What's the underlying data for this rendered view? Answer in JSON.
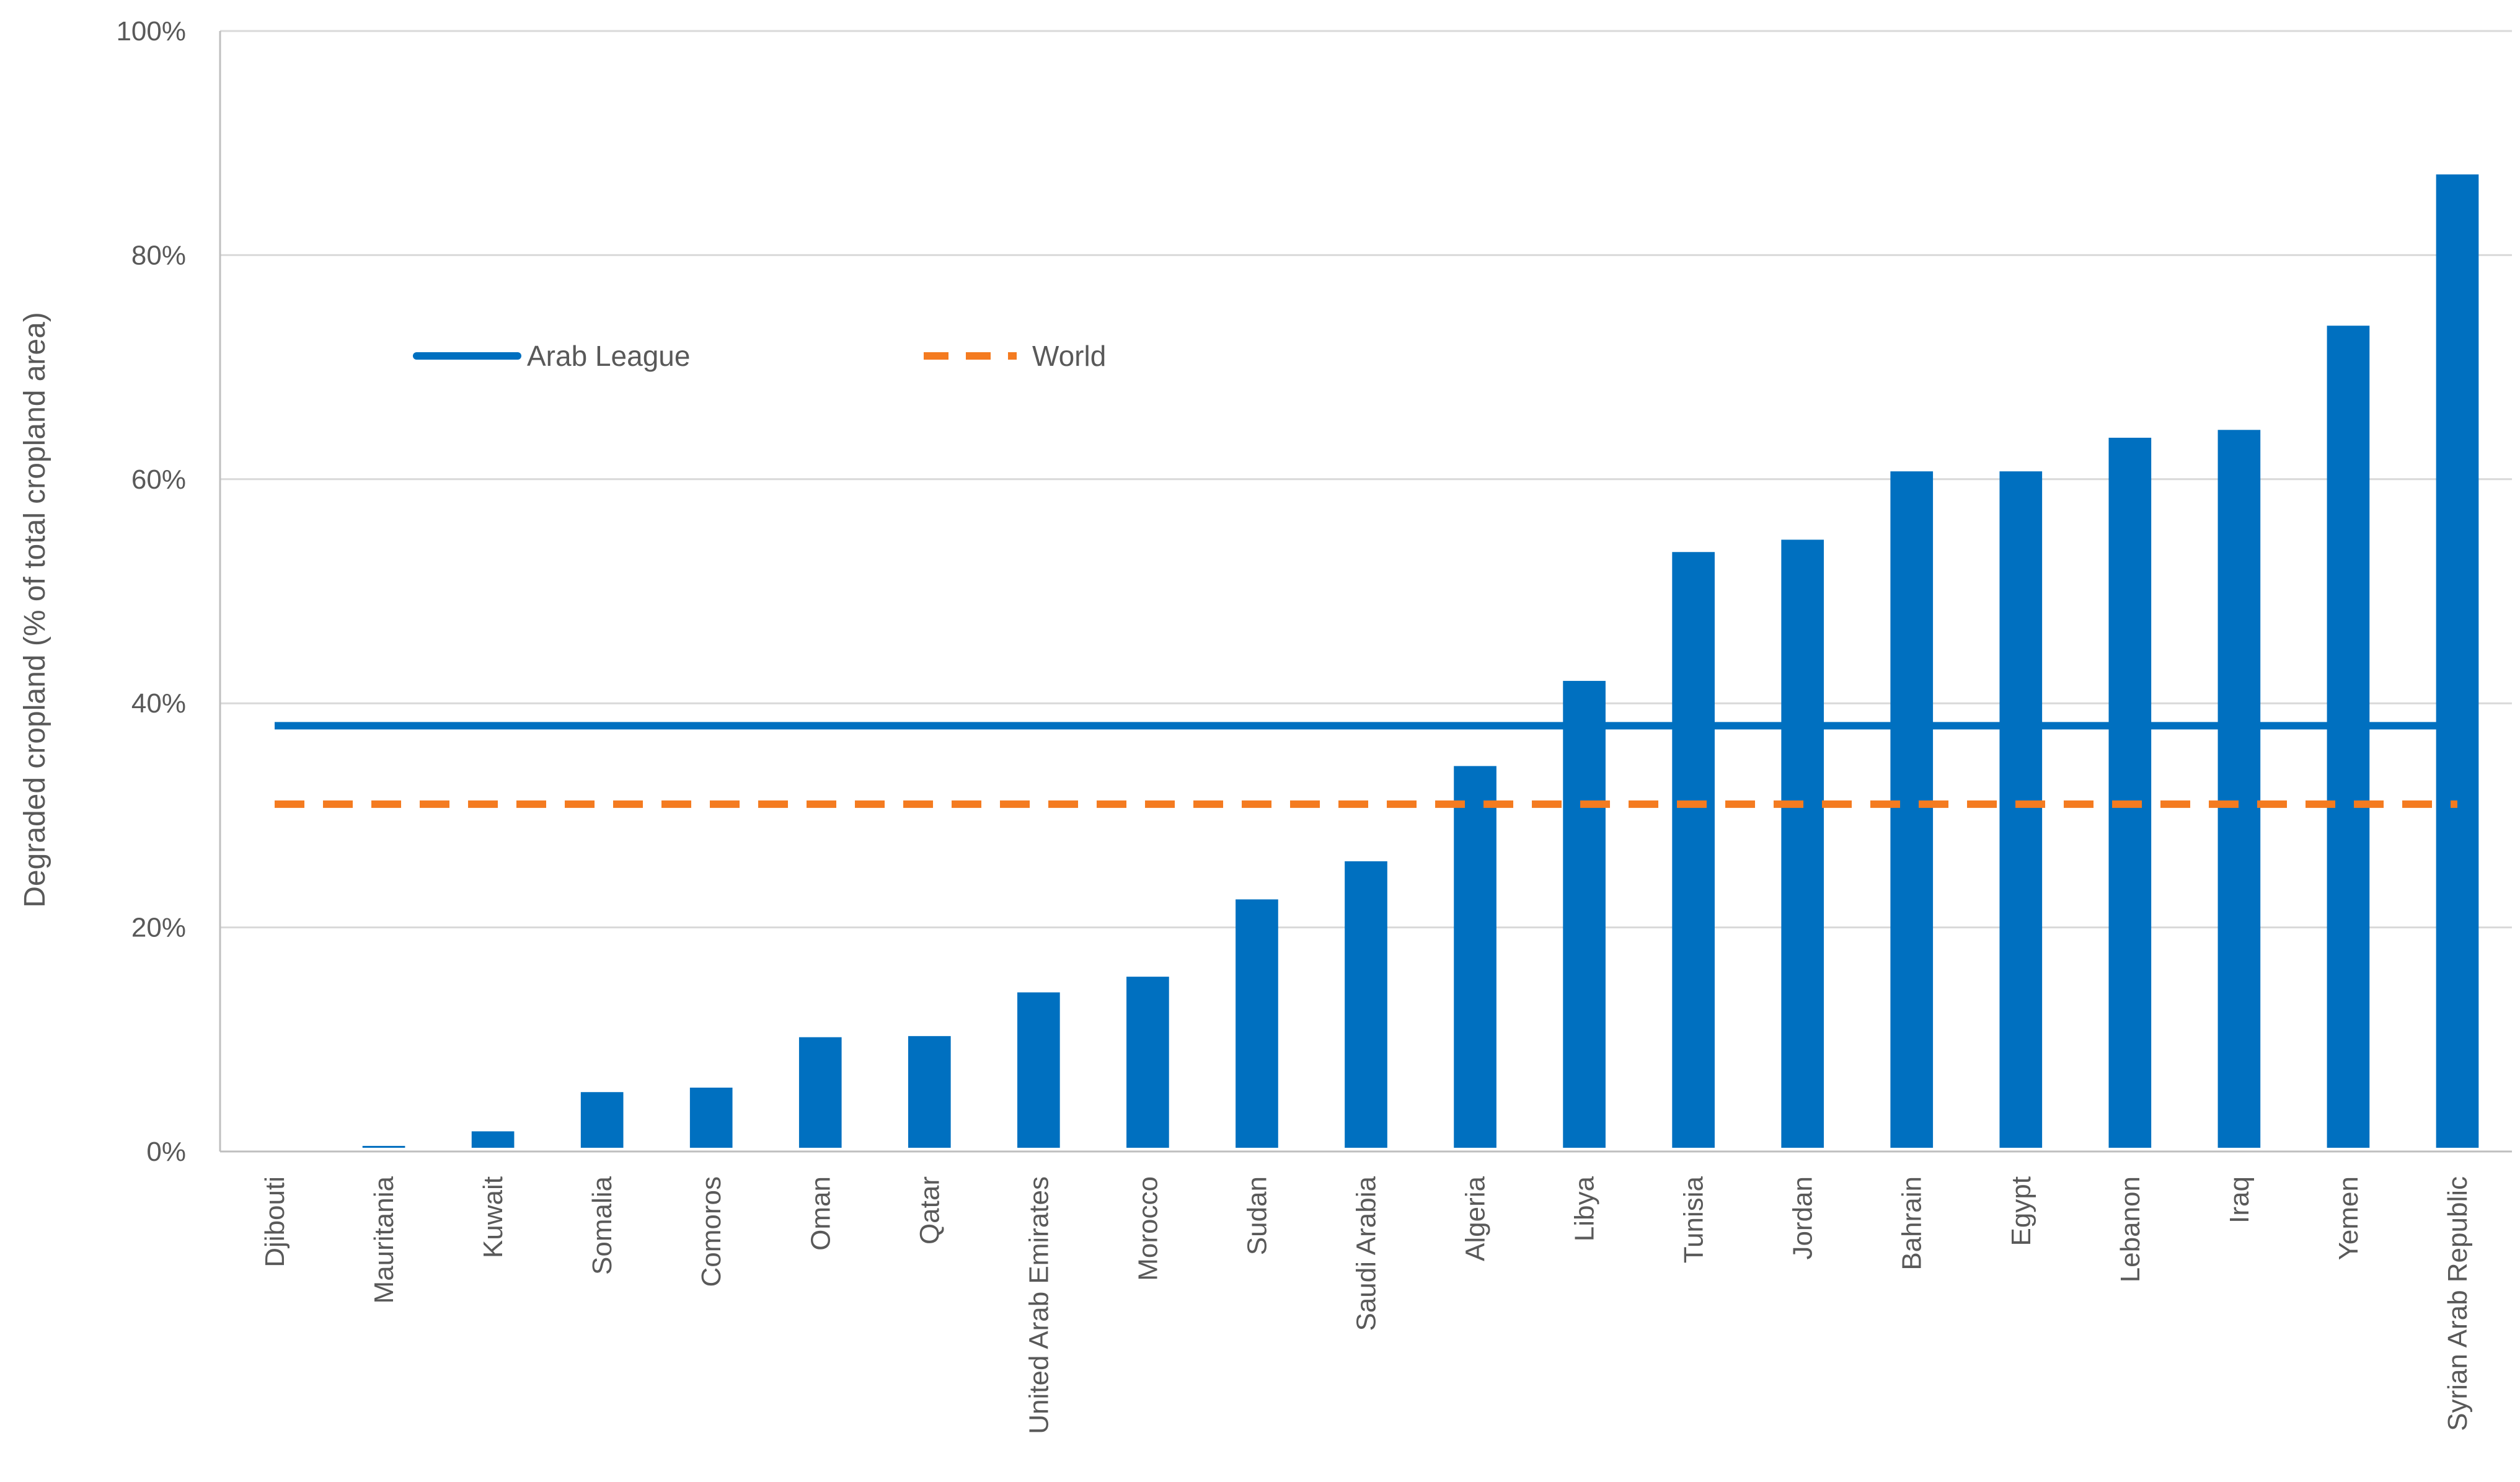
{
  "chart_data": {
    "type": "bar",
    "title": "",
    "xlabel": "",
    "ylabel": "Degraded cropland (% of total cropland area)",
    "ylim": [
      0,
      100
    ],
    "yticks": [
      "0%",
      "20%",
      "40%",
      "60%",
      "80%",
      "100%"
    ],
    "ytick_values": [
      0,
      20,
      40,
      60,
      80,
      100
    ],
    "grid": true,
    "legend_position": "top-left",
    "categories": [
      "Djibouti",
      "Mauritania",
      "Kuwait",
      "Somalia",
      "Comoros",
      "Oman",
      "Qatar",
      "United Arab Emirates",
      "Morocco",
      "Sudan",
      "Saudi Arabia",
      "Algeria",
      "Libya",
      "Tunisia",
      "Jordan",
      "Bahrain",
      "Egypt",
      "Lebanon",
      "Iraq",
      "Yemen",
      "Syrian Arab Republic"
    ],
    "series": [
      {
        "name": "Degraded cropland",
        "type": "bar",
        "color": "#0070C0",
        "values": [
          0,
          0.5,
          1.8,
          5.3,
          5.7,
          10.2,
          10.3,
          14.2,
          15.6,
          22.5,
          25.9,
          34.4,
          42.0,
          53.5,
          54.6,
          60.7,
          60.7,
          63.7,
          64.4,
          73.7,
          87.2
        ]
      },
      {
        "name": "Arab League",
        "type": "line",
        "style": "solid",
        "color": "#0070C0",
        "value": 38
      },
      {
        "name": "World",
        "type": "line",
        "style": "dashed",
        "color": "#F47B20",
        "value": 31
      }
    ],
    "colors": {
      "bar": "#0070C0",
      "arab_league": "#0070C0",
      "world": "#F47B20",
      "grid": "#D9D9D9",
      "axis": "#BFBFBF",
      "text": "#595959"
    }
  }
}
